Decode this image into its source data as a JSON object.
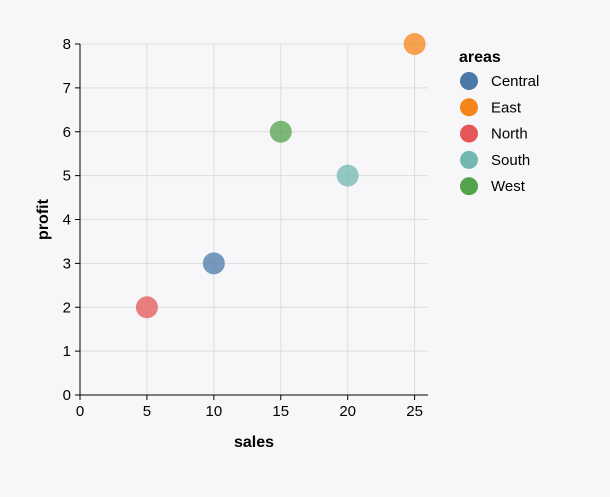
{
  "chart_data": {
    "type": "scatter",
    "xlabel": "sales",
    "ylabel": "profit",
    "xlim": [
      0,
      26
    ],
    "ylim": [
      0,
      8
    ],
    "x_ticks": [
      0,
      5,
      10,
      15,
      20,
      25
    ],
    "y_ticks": [
      0,
      1,
      2,
      3,
      4,
      5,
      6,
      7,
      8
    ],
    "grid": true,
    "legend": {
      "title": "areas",
      "placement": "right",
      "entries": [
        {
          "name": "Central",
          "color": "#4c78a8"
        },
        {
          "name": "East",
          "color": "#f58518"
        },
        {
          "name": "North",
          "color": "#e45756"
        },
        {
          "name": "South",
          "color": "#72b7b2"
        },
        {
          "name": "West",
          "color": "#54a24b"
        }
      ]
    },
    "points": [
      {
        "area": "North",
        "sales": 5,
        "profit": 2
      },
      {
        "area": "Central",
        "sales": 10,
        "profit": 3
      },
      {
        "area": "West",
        "sales": 15,
        "profit": 6
      },
      {
        "area": "South",
        "sales": 20,
        "profit": 5
      },
      {
        "area": "East",
        "sales": 25,
        "profit": 8
      }
    ]
  }
}
